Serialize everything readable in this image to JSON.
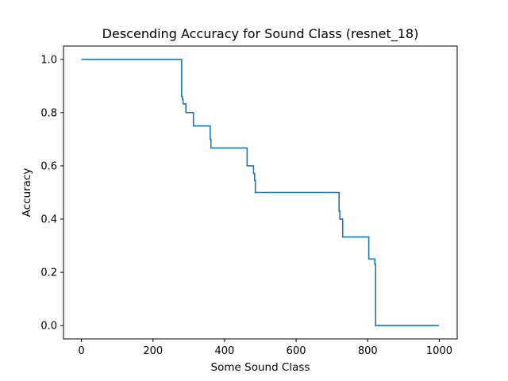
{
  "chart_data": {
    "type": "line",
    "title": "Descending Accuracy for Sound Class (resnet_18)",
    "xlabel": "Some Sound Class",
    "ylabel": "Accuracy",
    "xlim": [
      -50,
      1050
    ],
    "ylim": [
      -0.05,
      1.05
    ],
    "xticks": [
      0,
      200,
      400,
      600,
      800,
      1000
    ],
    "xtick_labels": [
      "0",
      "200",
      "400",
      "600",
      "800",
      "1000"
    ],
    "yticks": [
      0.0,
      0.2,
      0.4,
      0.6,
      0.8,
      1.0
    ],
    "ytick_labels": [
      "0.0",
      "0.2",
      "0.4",
      "0.6",
      "0.8",
      "1.0"
    ],
    "grid": false,
    "series": [
      {
        "color": "#1f77b4",
        "x": [
          0,
          280,
          280,
          282,
          282,
          284,
          284,
          292,
          292,
          313,
          313,
          360,
          360,
          362,
          362,
          463,
          463,
          481,
          481,
          484,
          484,
          486,
          486,
          720,
          720,
          722,
          722,
          730,
          730,
          803,
          803,
          820,
          820,
          822,
          822,
          999
        ],
        "y": [
          1.0,
          1.0,
          0.86,
          0.86,
          0.85,
          0.85,
          0.833,
          0.833,
          0.8,
          0.8,
          0.75,
          0.75,
          0.7,
          0.7,
          0.667,
          0.667,
          0.6,
          0.6,
          0.571,
          0.571,
          0.545,
          0.545,
          0.5,
          0.5,
          0.43,
          0.43,
          0.4,
          0.4,
          0.333,
          0.333,
          0.25,
          0.25,
          0.23,
          0.23,
          0.0,
          0.0
        ]
      }
    ]
  }
}
